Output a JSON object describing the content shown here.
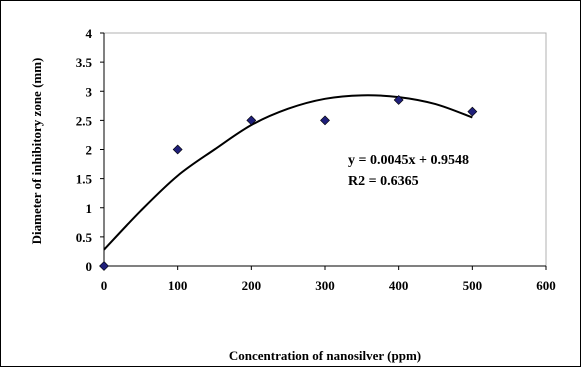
{
  "chart_data": {
    "type": "scatter",
    "xlabel": "Concentration of nanosilver  (ppm)",
    "ylabel": "Diameter of inhibitory zone (mm)",
    "xlim": [
      0,
      600
    ],
    "ylim": [
      0,
      4
    ],
    "x_ticks": [
      "0",
      "100",
      "200",
      "300",
      "400",
      "500",
      "600"
    ],
    "y_ticks": [
      "0",
      "0.5",
      "1",
      "1.5",
      "2",
      "2.5",
      "3",
      "3.5",
      "4"
    ],
    "grid": false,
    "series": [
      {
        "values": [
          [
            0,
            0
          ],
          [
            100,
            2
          ],
          [
            200,
            2.5
          ],
          [
            300,
            2.5
          ],
          [
            400,
            2.85
          ],
          [
            500,
            2.65
          ]
        ]
      }
    ],
    "trendline": {
      "type": "polynomial",
      "points": [
        [
          0,
          0.28
        ],
        [
          50,
          0.95
        ],
        [
          100,
          1.55
        ],
        [
          150,
          2.0
        ],
        [
          200,
          2.42
        ],
        [
          250,
          2.7
        ],
        [
          300,
          2.87
        ],
        [
          350,
          2.93
        ],
        [
          400,
          2.9
        ],
        [
          450,
          2.78
        ],
        [
          500,
          2.55
        ]
      ]
    },
    "annotations": [
      "y = 0.0045x + 0.9548",
      "R2 = 0.6365"
    ],
    "marker_color": "#1f1f7a",
    "line_color": "#000000"
  }
}
